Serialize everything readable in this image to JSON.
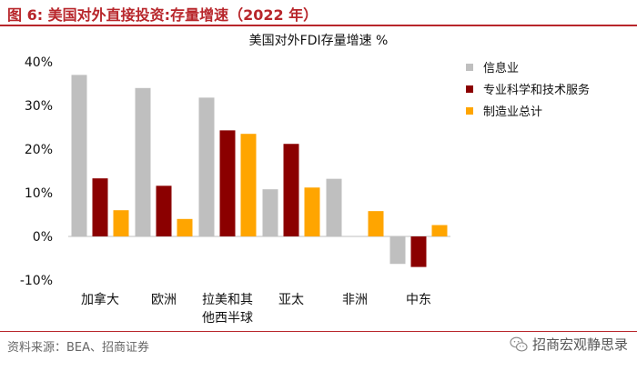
{
  "figure": {
    "title": "图 6:  美国对外直接投资:存量增速（2022 年）",
    "source": "资料来源：BEA、招商证券",
    "watermark": "招商宏观静思录",
    "accent_color": "#b8262b"
  },
  "chart_data": {
    "type": "bar",
    "title": "美国对外FDI存量增速 %",
    "categories": [
      [
        "加拿大"
      ],
      [
        "欧洲"
      ],
      [
        "拉美和其",
        "他西半球"
      ],
      [
        "亚太"
      ],
      [
        "非洲"
      ],
      [
        "中东"
      ]
    ],
    "series": [
      {
        "name": "信息业",
        "color": "#bfbfbf",
        "values": [
          37.0,
          34.0,
          31.8,
          10.8,
          13.2,
          -6.3
        ]
      },
      {
        "name": "专业科学和技术服务",
        "color": "#8b0000",
        "values": [
          13.3,
          11.6,
          24.3,
          21.2,
          null,
          -7.0
        ]
      },
      {
        "name": "制造业总计",
        "color": "#ffa500",
        "values": [
          6.0,
          4.0,
          23.5,
          11.2,
          5.8,
          2.6
        ]
      }
    ],
    "ylim": [
      -10,
      40
    ],
    "yticks": [
      -10,
      0,
      10,
      20,
      30,
      40
    ],
    "ytick_labels": [
      "-10%",
      "0%",
      "10%",
      "20%",
      "30%",
      "40%"
    ],
    "xlabel": "",
    "ylabel": "",
    "grid": false,
    "legend_position": "right"
  }
}
